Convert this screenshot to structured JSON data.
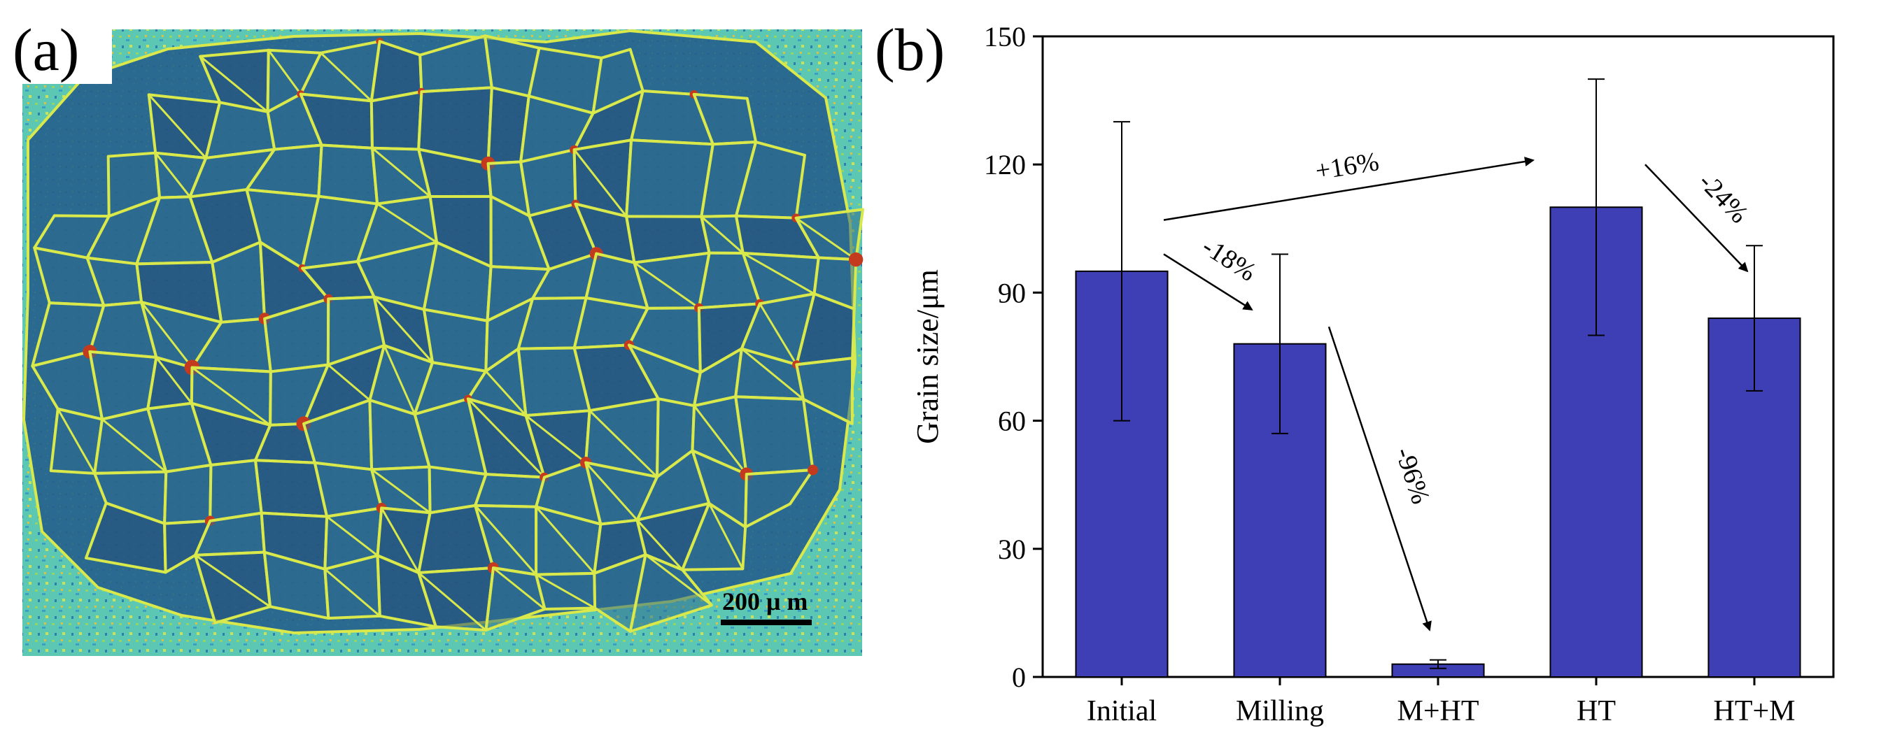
{
  "panel_a": {
    "label": "(a)",
    "scale_bar_text": "200 μ m",
    "colors": {
      "grain_fill": "#2d6a8f",
      "grain_fill_dark": "#244f78",
      "boundary": "#d9e84a",
      "matrix": "#5cc8b4",
      "matrix_alt": "#8fd66a",
      "hot_spot": "#c43a1e"
    }
  },
  "panel_b": {
    "label": "(b)",
    "bar_color": "#3f3fb5",
    "arrows": [
      {
        "from": "Initial",
        "to": "HT",
        "text": "+16%"
      },
      {
        "from": "Initial",
        "to": "Milling",
        "text": "-18%"
      },
      {
        "from": "Milling",
        "to": "M+HT",
        "text": "-96%"
      },
      {
        "from": "HT",
        "to": "HT+M",
        "text": "-24%"
      }
    ]
  },
  "chart_data": {
    "type": "bar",
    "title": "",
    "xlabel": "",
    "ylabel": "Grain size/μm",
    "categories": [
      "Initial",
      "Milling",
      "M+HT",
      "HT",
      "HT+M"
    ],
    "values": [
      95,
      78,
      3,
      110,
      84
    ],
    "error_low": [
      60,
      57,
      2,
      80,
      67
    ],
    "error_high": [
      130,
      99,
      4,
      140,
      101
    ],
    "ylim": [
      0,
      150
    ],
    "yticks": [
      0,
      30,
      60,
      90,
      120,
      150
    ],
    "ytick_labels": [
      "0",
      "30",
      "60",
      "90",
      "120",
      "150"
    ],
    "grid": false
  }
}
